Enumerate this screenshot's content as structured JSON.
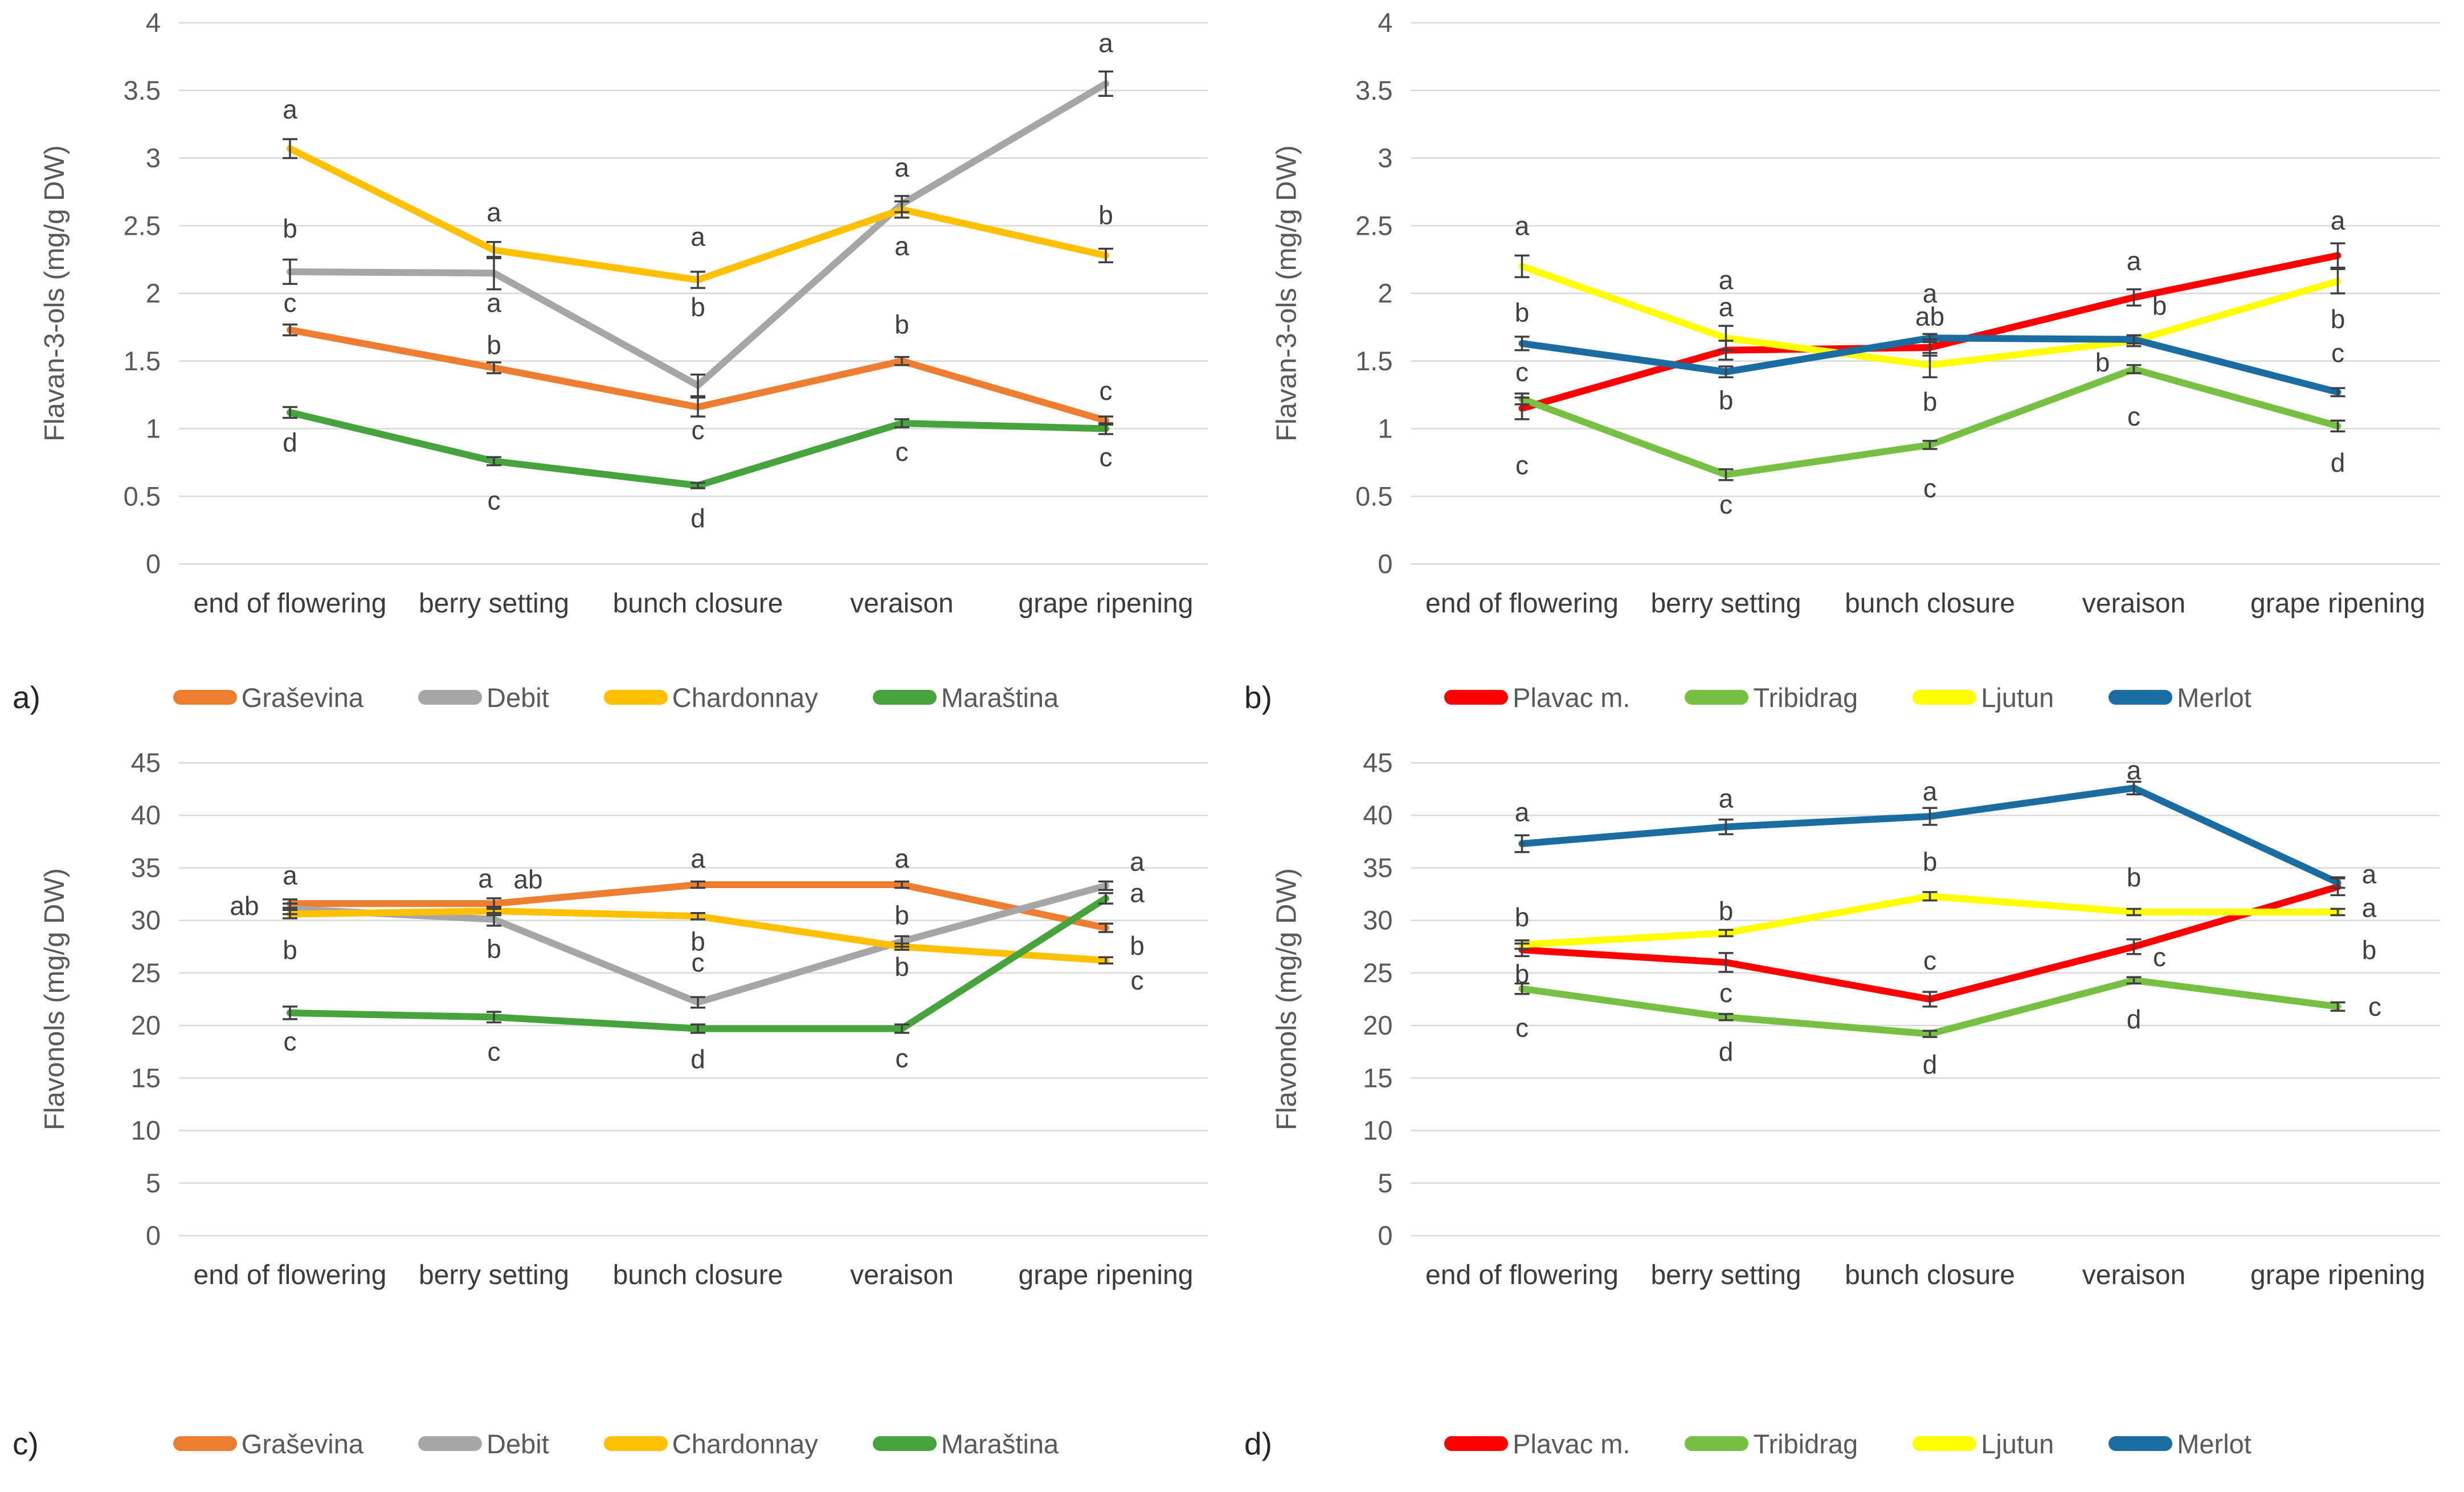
{
  "colors": {
    "background": "#FFFFFF",
    "gridline": "#D9D9D9",
    "error_bar": "#3F3F3F",
    "sig_letter_text": "#404040",
    "tick_text": "#595959",
    "axis_title_text": "#595959",
    "x_label_text": "#3B3B3B",
    "legend_text": "#595959",
    "panel_letter_text": "#262626",
    "graševina": "#ED7D31",
    "debit": "#A6A6A6",
    "chardonnay": "#FFC000",
    "maraština": "#47A33D",
    "plavac_m": "#FF0000",
    "tribidrag": "#77C044",
    "ljutun": "#FFFF00",
    "merlot": "#1B6CA1"
  },
  "chart_data": [
    {
      "id": "a",
      "panel_label": "a)",
      "type": "line",
      "title": "",
      "xlabel": "",
      "ylabel": "Flavan-3-ols (mg/g DW)",
      "ylim": [
        0,
        4
      ],
      "ytick_values": [
        0,
        0.5,
        1,
        1.5,
        2,
        2.5,
        3,
        3.5,
        4
      ],
      "yticks": [
        "0",
        "0.5",
        "1",
        "1.5",
        "2",
        "2.5",
        "3",
        "3.5",
        "4"
      ],
      "grid": true,
      "legend_position": "bottom",
      "error_bars": true,
      "categories": [
        "end of flowering",
        "berry setting",
        "bunch closure",
        "veraison",
        "grape ripening"
      ],
      "series": [
        {
          "name": "Graševina",
          "color": "#ED7D31",
          "values": [
            1.73,
            1.45,
            1.16,
            1.5,
            1.06
          ],
          "errors": [
            0.04,
            0.04,
            0.07,
            0.03,
            0.03
          ],
          "letters": [
            "c",
            "b",
            "c",
            "b",
            "c"
          ],
          "letter_y": [
            1.93,
            1.62,
            0.99,
            1.77,
            1.28
          ],
          "letter_dx": [
            0,
            0,
            0,
            0,
            0
          ]
        },
        {
          "name": "Debit",
          "color": "#A6A6A6",
          "values": [
            2.16,
            2.15,
            1.32,
            2.66,
            3.55
          ],
          "errors": [
            0.09,
            0.12,
            0.08,
            0.06,
            0.09
          ],
          "letters": [
            "b",
            "a",
            "b",
            "a",
            "a"
          ],
          "letter_y": [
            2.48,
            1.93,
            1.9,
            2.93,
            3.85
          ],
          "letter_dx": [
            0,
            0,
            0,
            0,
            0
          ]
        },
        {
          "name": "Chardonnay",
          "color": "#FFC000",
          "values": [
            3.07,
            2.32,
            2.1,
            2.62,
            2.28
          ],
          "errors": [
            0.07,
            0.06,
            0.06,
            0.06,
            0.05
          ],
          "letters": [
            "a",
            "a",
            "a",
            "a",
            "b"
          ],
          "letter_y": [
            3.36,
            2.6,
            2.42,
            2.35,
            2.58
          ],
          "letter_dx": [
            0,
            0,
            0,
            0,
            0
          ]
        },
        {
          "name": "Maraština",
          "color": "#47A33D",
          "values": [
            1.12,
            0.76,
            0.58,
            1.04,
            1.0
          ],
          "errors": [
            0.04,
            0.03,
            0.02,
            0.03,
            0.04
          ],
          "letters": [
            "d",
            "c",
            "d",
            "c",
            "c"
          ],
          "letter_y": [
            0.9,
            0.47,
            0.34,
            0.83,
            0.79
          ],
          "letter_dx": [
            0,
            0,
            0,
            0,
            0
          ]
        }
      ]
    },
    {
      "id": "b",
      "panel_label": "b)",
      "type": "line",
      "title": "",
      "xlabel": "",
      "ylabel": "Flavan-3-ols (mg/g DW)",
      "ylim": [
        0,
        4
      ],
      "ytick_values": [
        0,
        0.5,
        1,
        1.5,
        2,
        2.5,
        3,
        3.5,
        4
      ],
      "yticks": [
        "0",
        "0.5",
        "1",
        "1.5",
        "2",
        "2.5",
        "3",
        "3.5",
        "4"
      ],
      "grid": true,
      "legend_position": "bottom",
      "error_bars": true,
      "categories": [
        "end of flowering",
        "berry setting",
        "bunch closure",
        "veraison",
        "grape ripening"
      ],
      "series": [
        {
          "name": "Plavac m.",
          "color": "#FF0000",
          "values": [
            1.15,
            1.58,
            1.6,
            1.97,
            2.28
          ],
          "errors": [
            0.08,
            0.07,
            0.06,
            0.06,
            0.09
          ],
          "letters": [
            "c",
            "a",
            "ab",
            "a",
            "a"
          ],
          "letter_y": [
            1.42,
            1.9,
            1.83,
            2.24,
            2.54
          ],
          "letter_dx": [
            0,
            0,
            0,
            0,
            0
          ]
        },
        {
          "name": "Tribidrag",
          "color": "#77C044",
          "values": [
            1.22,
            0.66,
            0.88,
            1.44,
            1.02
          ],
          "errors": [
            0.04,
            0.04,
            0.03,
            0.03,
            0.04
          ],
          "letters": [
            "c",
            "c",
            "c",
            "c",
            "d"
          ],
          "letter_y": [
            0.73,
            0.44,
            0.56,
            1.09,
            0.75
          ],
          "letter_dx": [
            0,
            0,
            0,
            0,
            0
          ]
        },
        {
          "name": "Ljutun",
          "color": "#FFFF00",
          "values": [
            2.2,
            1.67,
            1.47,
            1.65,
            2.09
          ],
          "errors": [
            0.08,
            0.09,
            0.09,
            0.04,
            0.09
          ],
          "letters": [
            "a",
            "a",
            "b",
            "b",
            "b"
          ],
          "letter_y": [
            2.5,
            2.1,
            1.2,
            1.49,
            1.81
          ],
          "letter_dx": [
            0,
            0,
            0,
            -55,
            0
          ]
        },
        {
          "name": "Merlot",
          "color": "#1B6CA1",
          "values": [
            1.63,
            1.42,
            1.67,
            1.66,
            1.27
          ],
          "errors": [
            0.05,
            0.04,
            0.03,
            0.03,
            0.03
          ],
          "letters": [
            "b",
            "b",
            "a",
            "b",
            "c"
          ],
          "letter_y": [
            1.86,
            1.21,
            2.0,
            1.91,
            1.56
          ],
          "letter_dx": [
            0,
            0,
            0,
            45,
            0
          ]
        }
      ]
    },
    {
      "id": "c",
      "panel_label": "c)",
      "type": "line",
      "title": "",
      "xlabel": "",
      "ylabel": "Flavonols (mg/g DW)",
      "ylim": [
        0,
        45
      ],
      "ytick_values": [
        0,
        5,
        10,
        15,
        20,
        25,
        30,
        35,
        40,
        45
      ],
      "yticks": [
        "0",
        "5",
        "10",
        "15",
        "20",
        "25",
        "30",
        "35",
        "40",
        "45"
      ],
      "grid": true,
      "legend_position": "bottom",
      "error_bars": true,
      "categories": [
        "end of flowering",
        "berry setting",
        "bunch closure",
        "veraison",
        "grape ripening"
      ],
      "series": [
        {
          "name": "Graševina",
          "color": "#ED7D31",
          "values": [
            31.6,
            31.6,
            33.4,
            33.4,
            29.3
          ],
          "errors": [
            0.4,
            0.5,
            0.3,
            0.3,
            0.4
          ],
          "letters": [
            "a",
            "a",
            "a",
            "a",
            "b"
          ],
          "letter_y": [
            34.3,
            34.0,
            35.9,
            35.9,
            27.6
          ],
          "letter_dx": [
            0,
            -15,
            0,
            0,
            55
          ]
        },
        {
          "name": "Debit",
          "color": "#A6A6A6",
          "values": [
            31.1,
            30.1,
            22.2,
            28.0,
            33.3
          ],
          "errors": [
            0.5,
            0.6,
            0.5,
            0.5,
            0.4
          ],
          "letters": [
            "ab",
            "b",
            "c",
            "b",
            "a"
          ],
          "letter_y": [
            31.4,
            27.3,
            26.0,
            30.5,
            35.6
          ],
          "letter_dx": [
            -80,
            0,
            0,
            0,
            55
          ]
        },
        {
          "name": "Chardonnay",
          "color": "#FFC000",
          "values": [
            30.6,
            30.9,
            30.4,
            27.5,
            26.2
          ],
          "errors": [
            0.4,
            0.4,
            0.3,
            0.3,
            0.3
          ],
          "letters": [
            "b",
            "ab",
            "b",
            "b",
            "c"
          ],
          "letter_y": [
            27.2,
            33.9,
            28.0,
            25.6,
            24.3
          ],
          "letter_dx": [
            0,
            60,
            0,
            0,
            55
          ]
        },
        {
          "name": "Maraština",
          "color": "#47A33D",
          "values": [
            21.2,
            20.8,
            19.7,
            19.7,
            32.1
          ],
          "errors": [
            0.6,
            0.5,
            0.4,
            0.4,
            0.5
          ],
          "letters": [
            "c",
            "c",
            "d",
            "c",
            "a"
          ],
          "letter_y": [
            18.5,
            17.5,
            16.8,
            16.9,
            32.6
          ],
          "letter_dx": [
            0,
            0,
            0,
            0,
            55
          ]
        }
      ]
    },
    {
      "id": "d",
      "panel_label": "d)",
      "type": "line",
      "title": "",
      "xlabel": "",
      "ylabel": "Flavonols (mg/g DW)",
      "ylim": [
        0,
        45
      ],
      "ytick_values": [
        0,
        5,
        10,
        15,
        20,
        25,
        30,
        35,
        40,
        45
      ],
      "yticks": [
        "0",
        "5",
        "10",
        "15",
        "20",
        "25",
        "30",
        "35",
        "40",
        "45"
      ],
      "grid": true,
      "legend_position": "bottom",
      "error_bars": true,
      "categories": [
        "end of flowering",
        "berry setting",
        "bunch closure",
        "veraison",
        "grape ripening"
      ],
      "series": [
        {
          "name": "Plavac m.",
          "color": "#FF0000",
          "values": [
            27.2,
            26.0,
            22.5,
            27.5,
            33.2
          ],
          "errors": [
            0.6,
            0.9,
            0.7,
            0.7,
            0.8
          ],
          "letters": [
            "b",
            "c",
            "c",
            "c",
            "a"
          ],
          "letter_y": [
            24.9,
            23.1,
            26.2,
            26.5,
            31.2
          ],
          "letter_dx": [
            0,
            0,
            0,
            45,
            55
          ]
        },
        {
          "name": "Tribidrag",
          "color": "#77C044",
          "values": [
            23.5,
            20.8,
            19.2,
            24.3,
            21.8
          ],
          "errors": [
            0.5,
            0.3,
            0.3,
            0.3,
            0.4
          ],
          "letters": [
            "c",
            "d",
            "d",
            "d",
            "c"
          ],
          "letter_y": [
            19.8,
            17.5,
            16.3,
            20.6,
            21.8
          ],
          "letter_dx": [
            0,
            0,
            0,
            0,
            65
          ]
        },
        {
          "name": "Ljutun",
          "color": "#FFFF00",
          "values": [
            27.7,
            28.8,
            32.3,
            30.8,
            30.8
          ],
          "errors": [
            0.4,
            0.3,
            0.4,
            0.3,
            0.3
          ],
          "letters": [
            "b",
            "b",
            "b",
            "b",
            "b"
          ],
          "letter_y": [
            30.3,
            30.9,
            35.6,
            34.1,
            27.2
          ],
          "letter_dx": [
            0,
            0,
            0,
            0,
            55
          ]
        },
        {
          "name": "Merlot",
          "color": "#1B6CA1",
          "values": [
            37.3,
            38.9,
            39.9,
            42.6,
            33.6
          ],
          "errors": [
            0.8,
            0.7,
            0.8,
            0.6,
            0.5
          ],
          "letters": [
            "a",
            "a",
            "a",
            "a",
            "a"
          ],
          "letter_y": [
            40.3,
            41.6,
            42.3,
            44.3,
            34.4
          ],
          "letter_dx": [
            0,
            0,
            0,
            0,
            55
          ]
        }
      ]
    }
  ]
}
